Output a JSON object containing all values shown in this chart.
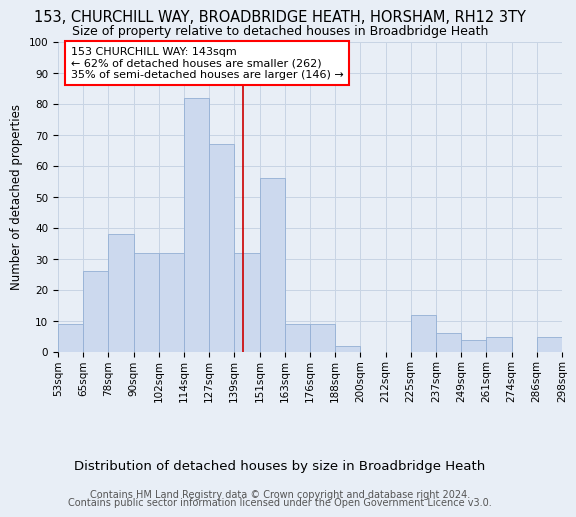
{
  "title": "153, CHURCHILL WAY, BROADBRIDGE HEATH, HORSHAM, RH12 3TY",
  "subtitle": "Size of property relative to detached houses in Broadbridge Heath",
  "xlabel": "Distribution of detached houses by size in Broadbridge Heath",
  "ylabel": "Number of detached properties",
  "footer_line1": "Contains HM Land Registry data © Crown copyright and database right 2024.",
  "footer_line2": "Contains public sector information licensed under the Open Government Licence v3.0.",
  "categories": [
    "53sqm",
    "65sqm",
    "78sqm",
    "90sqm",
    "102sqm",
    "114sqm",
    "127sqm",
    "139sqm",
    "151sqm",
    "163sqm",
    "176sqm",
    "188sqm",
    "200sqm",
    "212sqm",
    "225sqm",
    "237sqm",
    "249sqm",
    "261sqm",
    "274sqm",
    "286sqm",
    "298sqm"
  ],
  "values": [
    9,
    26,
    38,
    32,
    32,
    82,
    67,
    32,
    56,
    9,
    9,
    2,
    0,
    0,
    12,
    6,
    4,
    5,
    0,
    5
  ],
  "bar_color": "#ccd9ee",
  "bar_edge_color": "#93afd4",
  "annotation_text_lines": [
    "153 CHURCHILL WAY: 143sqm",
    "← 62% of detached houses are smaller (262)",
    "35% of semi-detached houses are larger (146) →"
  ],
  "vline_color": "#cc0000",
  "ylim": [
    0,
    100
  ],
  "yticks": [
    0,
    10,
    20,
    30,
    40,
    50,
    60,
    70,
    80,
    90,
    100
  ],
  "grid_color": "#c8d4e4",
  "background_color": "#e8eef6",
  "title_fontsize": 10.5,
  "subtitle_fontsize": 9,
  "xlabel_fontsize": 9.5,
  "ylabel_fontsize": 8.5,
  "tick_fontsize": 7.5,
  "footer_fontsize": 7,
  "ann_fontsize": 8
}
